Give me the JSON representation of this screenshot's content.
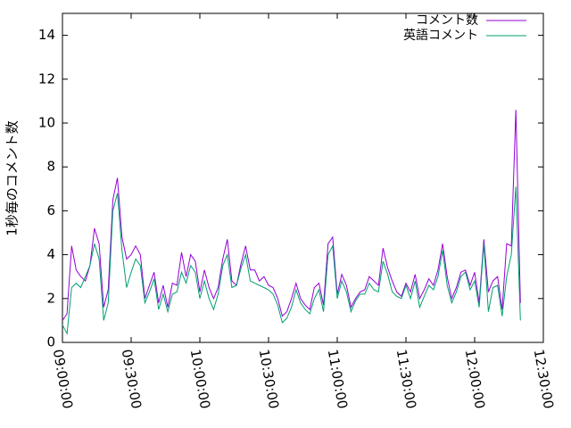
{
  "chart_data": {
    "type": "line",
    "ylabel": "1秒毎のコメント数",
    "x": [
      0,
      2,
      4,
      6,
      8,
      10,
      12,
      14,
      16,
      18,
      20,
      22,
      24,
      26,
      28,
      30,
      32,
      34,
      36,
      38,
      40,
      42,
      44,
      46,
      48,
      50,
      52,
      54,
      56,
      58,
      60,
      62,
      64,
      66,
      68,
      70,
      72,
      74,
      76,
      78,
      80,
      82,
      84,
      86,
      88,
      90,
      92,
      94,
      96,
      98,
      100,
      102,
      104,
      106,
      108,
      110,
      112,
      114,
      116,
      118,
      120,
      122,
      124,
      126,
      128,
      130,
      132,
      134,
      136,
      138,
      140,
      142,
      144,
      146,
      148,
      150,
      152,
      154,
      156,
      158,
      160,
      162,
      164,
      166,
      168,
      170,
      172,
      174,
      176,
      178,
      180,
      182,
      184,
      186,
      188,
      190,
      192,
      194,
      196,
      198,
      200
    ],
    "series": [
      {
        "name": "コメント数",
        "color": "#9400d3",
        "values": [
          1.0,
          1.3,
          4.4,
          3.3,
          3.0,
          2.8,
          3.5,
          5.2,
          4.5,
          1.6,
          2.4,
          6.5,
          7.5,
          4.8,
          3.8,
          4.0,
          4.4,
          4.0,
          2.0,
          2.6,
          3.2,
          1.8,
          2.6,
          1.6,
          2.7,
          2.6,
          4.1,
          3.0,
          4.0,
          3.7,
          2.3,
          3.3,
          2.5,
          2.0,
          2.5,
          3.8,
          4.7,
          2.8,
          2.6,
          3.6,
          4.4,
          3.3,
          3.3,
          2.8,
          3.0,
          2.6,
          2.5,
          2.0,
          1.2,
          1.4,
          2.0,
          2.7,
          2.0,
          1.7,
          1.5,
          2.5,
          2.7,
          1.7,
          4.5,
          4.8,
          2.2,
          3.1,
          2.6,
          1.6,
          2.0,
          2.3,
          2.4,
          3.0,
          2.8,
          2.6,
          4.3,
          3.4,
          2.8,
          2.3,
          2.1,
          2.7,
          2.3,
          3.1,
          2.0,
          2.4,
          2.9,
          2.6,
          3.3,
          4.5,
          3.0,
          2.0,
          2.5,
          3.2,
          3.3,
          2.6,
          3.2,
          1.8,
          4.7,
          2.3,
          2.8,
          3.0,
          1.5,
          4.5,
          4.4,
          10.6,
          1.8
        ]
      },
      {
        "name": "英語コメント",
        "color": "#009e73",
        "values": [
          0.8,
          0.4,
          2.5,
          2.7,
          2.5,
          3.0,
          3.5,
          4.5,
          3.8,
          1.0,
          1.8,
          6.0,
          6.8,
          4.2,
          2.5,
          3.2,
          3.8,
          3.5,
          1.8,
          2.3,
          2.9,
          1.5,
          2.2,
          1.4,
          2.2,
          2.3,
          3.2,
          2.7,
          3.5,
          3.2,
          2.0,
          2.8,
          2.0,
          1.5,
          2.2,
          3.5,
          4.0,
          2.5,
          2.6,
          3.4,
          4.0,
          2.8,
          2.7,
          2.6,
          2.5,
          2.4,
          2.2,
          1.7,
          0.9,
          1.1,
          1.6,
          2.4,
          1.8,
          1.5,
          1.3,
          2.0,
          2.4,
          1.4,
          4.0,
          4.4,
          2.0,
          2.8,
          2.3,
          1.4,
          1.9,
          2.2,
          2.2,
          2.7,
          2.4,
          2.3,
          3.7,
          3.1,
          2.3,
          2.1,
          2.0,
          2.6,
          2.0,
          2.8,
          1.6,
          2.1,
          2.6,
          2.4,
          3.0,
          4.2,
          2.6,
          1.8,
          2.3,
          3.0,
          3.2,
          2.4,
          2.8,
          1.6,
          4.5,
          1.4,
          2.5,
          2.6,
          1.2,
          3.0,
          4.0,
          7.1,
          1.0
        ]
      }
    ],
    "xlim": [
      0,
      210
    ],
    "xticks": [
      {
        "value": 0,
        "label": "09:00:00"
      },
      {
        "value": 30,
        "label": "09:30:00"
      },
      {
        "value": 60,
        "label": "10:00:00"
      },
      {
        "value": 90,
        "label": "10:30:00"
      },
      {
        "value": 120,
        "label": "11:00:00"
      },
      {
        "value": 150,
        "label": "11:30:00"
      },
      {
        "value": 180,
        "label": "12:00:00"
      },
      {
        "value": 210,
        "label": "12:30:00"
      }
    ],
    "ylim": [
      0,
      15
    ],
    "yticks": [
      0,
      2,
      4,
      6,
      8,
      10,
      12,
      14
    ],
    "legend": "top-right"
  }
}
